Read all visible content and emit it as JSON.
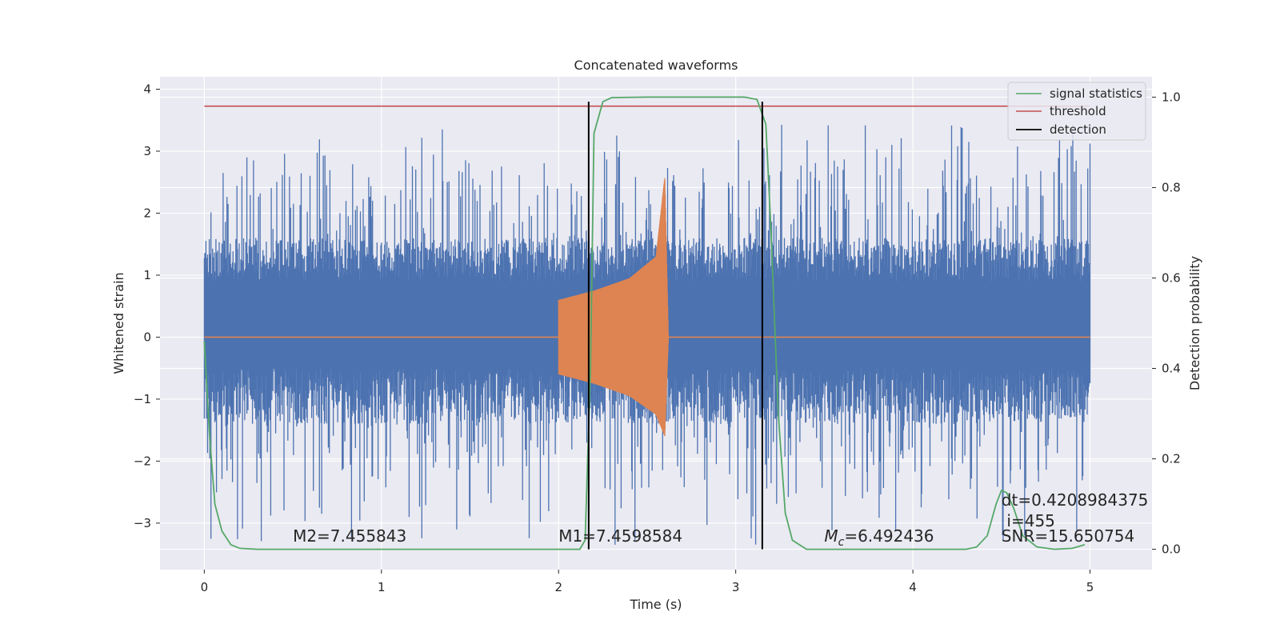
{
  "chart_data": {
    "type": "line",
    "title": "Concatenated waveforms",
    "xlabel": "Time (s)",
    "ylabel": "Whitened strain",
    "y2label": "Detection probability",
    "xlim": [
      -0.25,
      5.35
    ],
    "ylim": [
      -3.75,
      4.2
    ],
    "y2lim": [
      -0.045,
      1.045
    ],
    "xticks": [
      0,
      1,
      2,
      3,
      4,
      5
    ],
    "xtick_labels": [
      "0",
      "1",
      "2",
      "3",
      "4",
      "5"
    ],
    "yticks": [
      -3,
      -2,
      -1,
      0,
      1,
      2,
      3,
      4
    ],
    "ytick_labels": [
      "−3",
      "−2",
      "−1",
      "0",
      "1",
      "2",
      "3",
      "4"
    ],
    "y2ticks": [
      0.0,
      0.2,
      0.4,
      0.6,
      0.8,
      1.0
    ],
    "y2tick_labels": [
      "0.0",
      "0.2",
      "0.4",
      "0.6",
      "0.8",
      "1.0"
    ],
    "grid": true,
    "legend_position": "top-right",
    "legend": [
      "signal statistics",
      "threshold",
      "detection"
    ],
    "series": [
      {
        "name": "",
        "axis": "left",
        "kind": "noise",
        "color": "#4c72b0",
        "x_range": [
          0,
          5
        ],
        "envelope_core": [
          -0.5,
          0.9
        ],
        "peak_max": 3.45,
        "trough_min": -3.35
      },
      {
        "name": "",
        "axis": "left",
        "kind": "chirp",
        "color": "#dd8452",
        "x": [
          2.0,
          2.2,
          2.4,
          2.55,
          2.6,
          2.62
        ],
        "upper": [
          0.6,
          0.75,
          0.95,
          1.3,
          2.6,
          0.05
        ],
        "lower": [
          -0.6,
          -0.75,
          -0.95,
          -1.25,
          -1.6,
          -0.05
        ]
      },
      {
        "name": "signal statistics",
        "axis": "right",
        "color": "#55a868",
        "x": [
          0,
          0.03,
          0.06,
          0.1,
          0.15,
          0.2,
          0.3,
          2.12,
          2.15,
          2.18,
          2.2,
          2.25,
          2.3,
          2.5,
          3.05,
          3.12,
          3.17,
          3.2,
          3.24,
          3.28,
          3.32,
          3.4,
          4.3,
          4.36,
          4.42,
          4.47,
          4.5,
          4.53,
          4.57,
          4.62,
          4.7,
          4.8,
          4.9,
          4.97
        ],
        "y": [
          0.46,
          0.25,
          0.1,
          0.04,
          0.01,
          0.002,
          0.0,
          0.0,
          0.02,
          0.4,
          0.92,
          0.99,
          0.999,
          1.0,
          1.0,
          0.995,
          0.94,
          0.7,
          0.3,
          0.08,
          0.02,
          0.0,
          0.0,
          0.005,
          0.03,
          0.1,
          0.13,
          0.125,
          0.09,
          0.03,
          0.005,
          0.0,
          0.002,
          0.01
        ]
      },
      {
        "name": "threshold",
        "axis": "right",
        "color": "#c44e52",
        "x": [
          0,
          5
        ],
        "y": [
          0.98,
          0.98
        ]
      },
      {
        "name": "detection",
        "axis": "right",
        "color": "#000000",
        "type": "vlines",
        "x": [
          2.17,
          3.15
        ],
        "y_range": [
          0.0,
          0.99
        ]
      }
    ],
    "annotations": [
      {
        "text": "M2=7.455843",
        "x": 0.5,
        "y": -3.3
      },
      {
        "text": "M1=7.4598584",
        "x": 2.0,
        "y": -3.3
      },
      {
        "mathText": "M",
        "sub": "c",
        "rest": "=6.492436",
        "x": 3.5,
        "y": -3.3
      },
      {
        "text": "SNR=15.650754",
        "x": 4.5,
        "y": -3.3
      },
      {
        "text": "i=455",
        "x": 4.53,
        "y": -3.05
      },
      {
        "text": "dt=0.4208984375",
        "x": 4.5,
        "y": -2.72
      }
    ]
  }
}
